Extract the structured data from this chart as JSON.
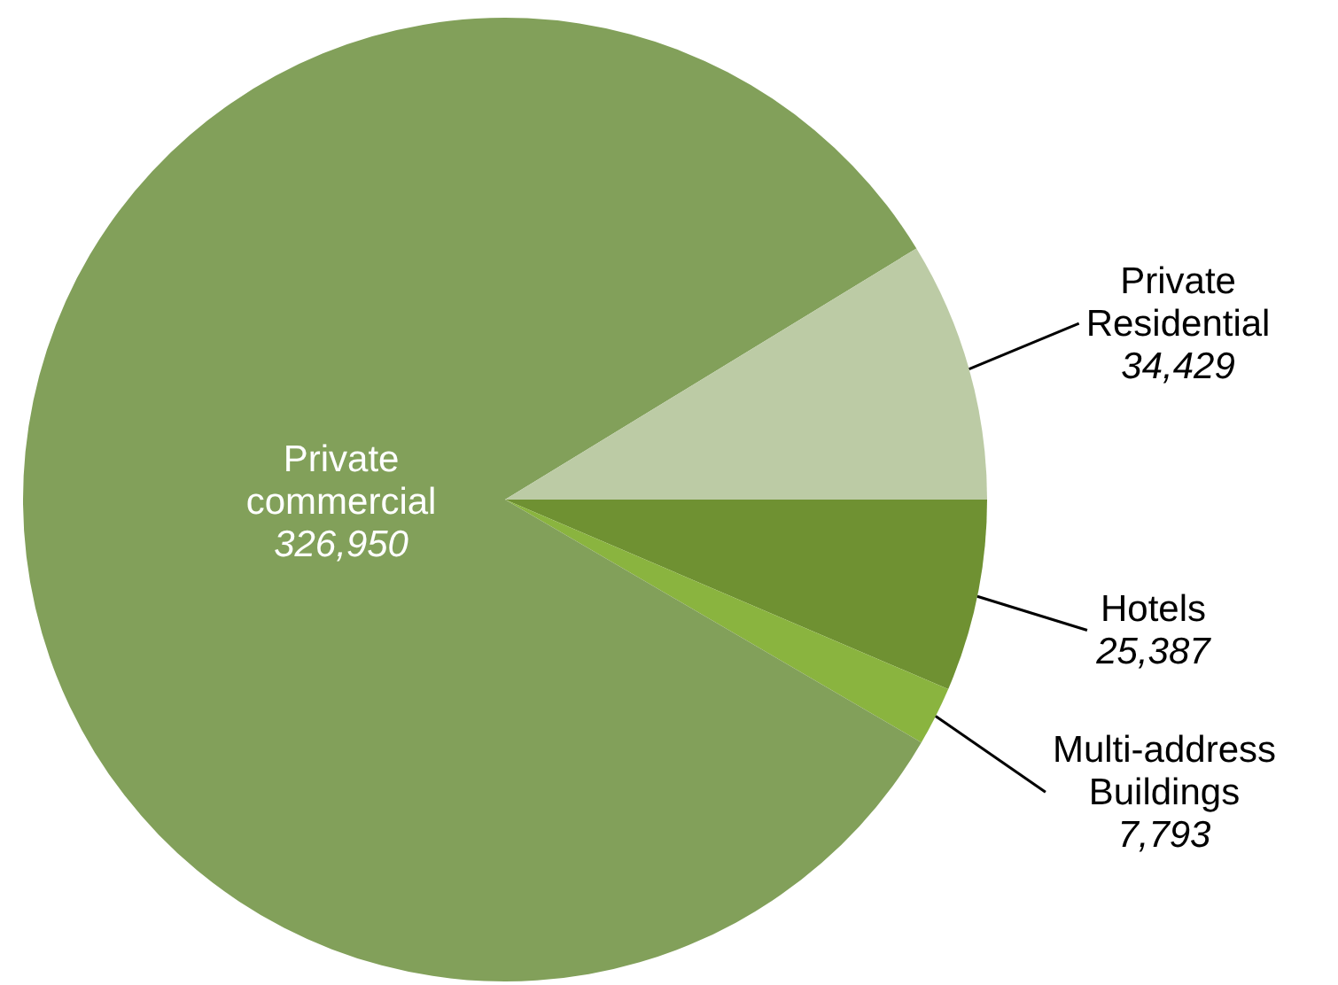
{
  "chart_data": {
    "type": "pie",
    "categories": [
      "Hotels",
      "Multi-address Buildings",
      "Private commercial",
      "Private Residential"
    ],
    "values": [
      25387,
      7793,
      326950,
      34429
    ],
    "value_labels": [
      "25,387",
      "7,793",
      "326,950",
      "34,429"
    ],
    "colors": [
      "#6f9132",
      "#8ab43f",
      "#82a05a",
      "#bccba5"
    ]
  }
}
